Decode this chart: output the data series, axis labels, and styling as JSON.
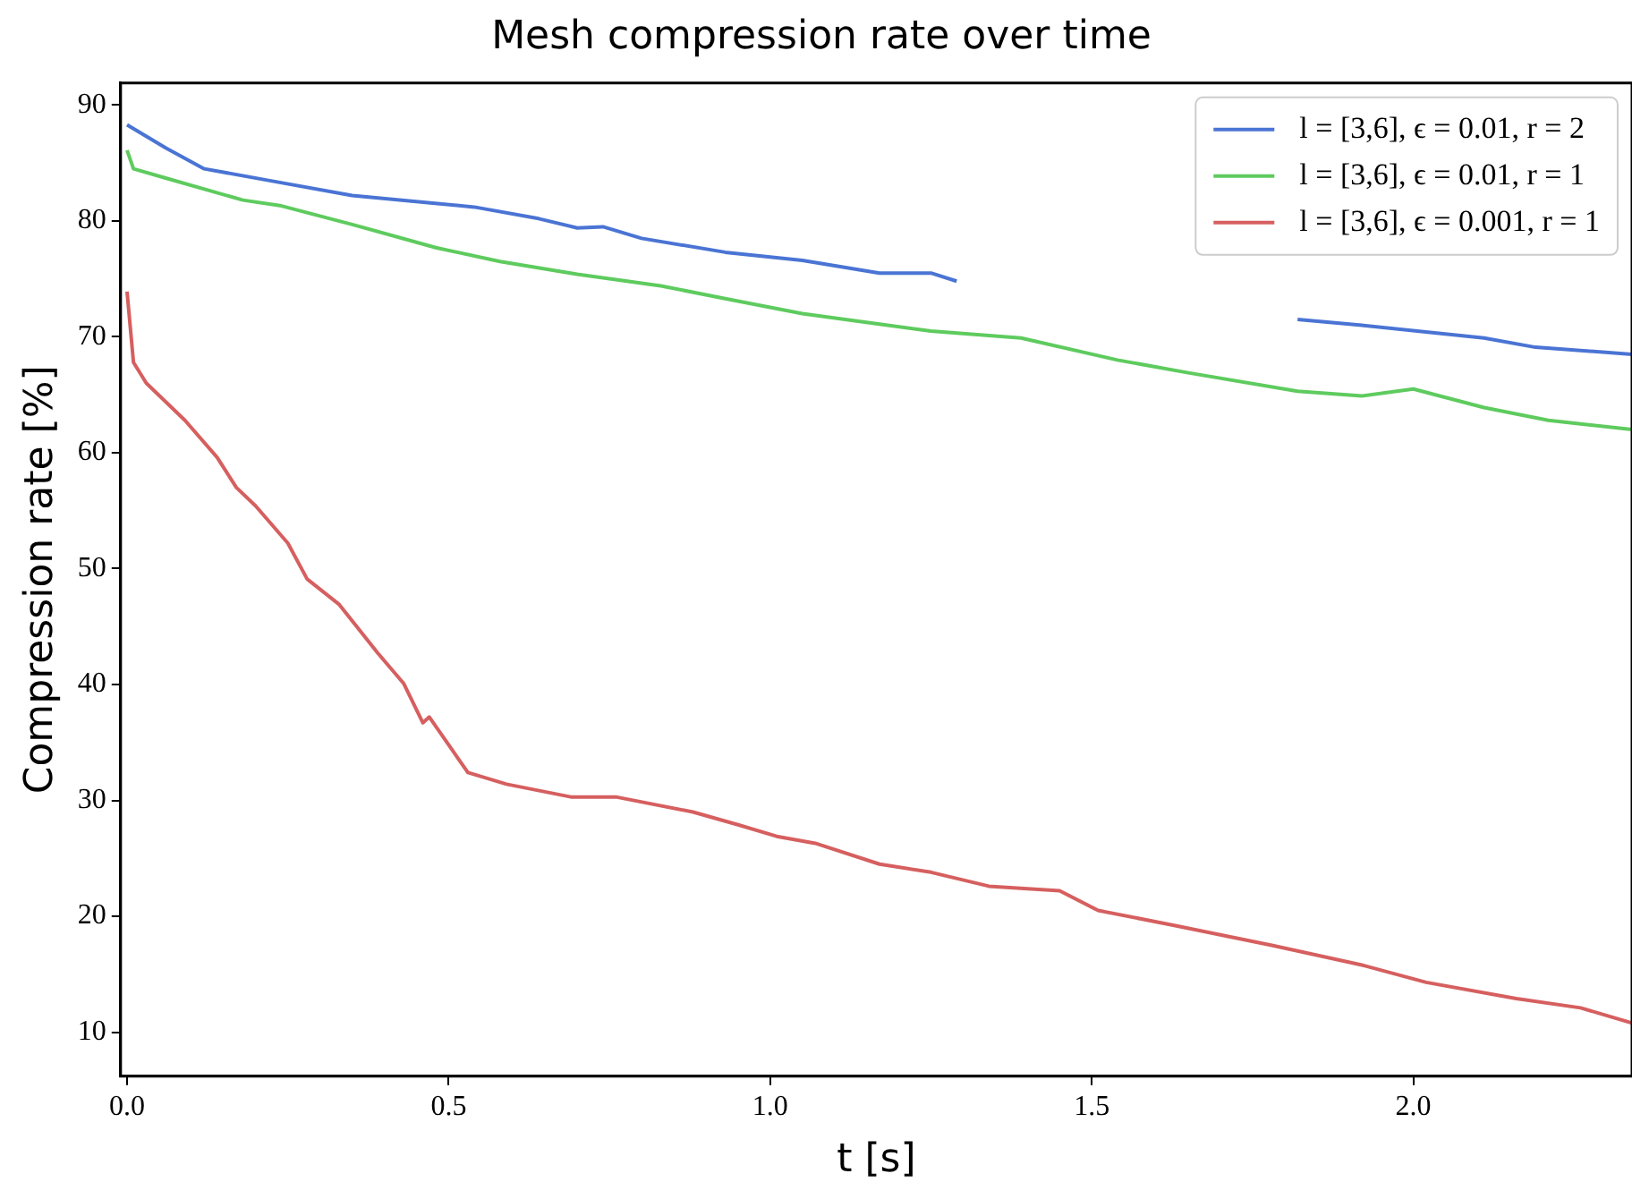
{
  "chart_data": {
    "type": "line",
    "title": "Mesh compression rate over time",
    "xlabel": "t [s]",
    "ylabel": "Compression rate [%]",
    "xlim": [
      -0.01,
      2.34
    ],
    "xticks": [
      {
        "value": 0,
        "label": "0.0"
      },
      0.5,
      {
        "value": 1,
        "label": "1.0"
      },
      1.5,
      {
        "value": 2,
        "label": "2.0"
      }
    ],
    "ylim": [
      6.2,
      91.9
    ],
    "yticks": [
      10,
      20,
      30,
      40,
      50,
      60,
      70,
      80,
      90
    ],
    "grid": false,
    "legend": "top right",
    "marker": "none",
    "line_style": "solid",
    "series": [
      {
        "name": "l = [3,6], ϵ = 0.01, r = 2",
        "color": "#4a74d4",
        "x": [
          0,
          0.06,
          0.12,
          0.22,
          0.35,
          0.54,
          0.64,
          0.7,
          0.74,
          0.8,
          0.93,
          1.05,
          1.17,
          1.25,
          1.29,
          1.54,
          1.82,
          1.92,
          2.11,
          2.19,
          2.34
        ],
        "values": [
          88.3,
          86.3,
          84.5,
          83.5,
          82.2,
          81.2,
          80.2,
          79.4,
          79.5,
          78.5,
          77.3,
          76.6,
          75.5,
          75.5,
          74.8,
          null,
          71.5,
          71.0,
          69.9,
          69.1,
          68.5
        ]
      },
      {
        "name": "l = [3,6], ϵ = 0.01, r = 1",
        "color": "#5ecb5e",
        "x": [
          0,
          0.01,
          0.06,
          0.18,
          0.24,
          0.35,
          0.48,
          0.58,
          0.7,
          0.83,
          0.93,
          1.05,
          1.17,
          1.25,
          1.39,
          1.54,
          1.65,
          1.82,
          1.92,
          2.0,
          2.11,
          2.21,
          2.34
        ],
        "values": [
          86.1,
          84.5,
          83.7,
          81.8,
          81.3,
          79.7,
          77.7,
          76.5,
          75.4,
          74.4,
          73.3,
          72.0,
          71.1,
          70.5,
          69.9,
          68.0,
          66.9,
          65.3,
          64.9,
          65.5,
          63.9,
          62.8,
          62.0
        ]
      },
      {
        "name": "l = [3,6], ϵ = 0.001, r = 1",
        "color": "#d65f5f",
        "x": [
          0,
          0.01,
          0.03,
          0.09,
          0.14,
          0.17,
          0.2,
          0.25,
          0.28,
          0.33,
          0.39,
          0.43,
          0.46,
          0.47,
          0.53,
          0.59,
          0.69,
          0.76,
          0.88,
          0.95,
          1.01,
          1.07,
          1.17,
          1.25,
          1.34,
          1.45,
          1.51,
          1.63,
          1.78,
          1.92,
          2.02,
          2.16,
          2.26,
          2.34
        ],
        "values": [
          73.9,
          67.8,
          66.0,
          62.8,
          59.6,
          57.0,
          55.4,
          52.2,
          49.1,
          46.9,
          42.7,
          40.1,
          36.7,
          37.2,
          32.4,
          31.4,
          30.3,
          30.3,
          29.0,
          27.9,
          26.9,
          26.3,
          24.5,
          23.8,
          22.6,
          22.2,
          20.5,
          19.2,
          17.5,
          15.8,
          14.3,
          12.9,
          12.1,
          10.8
        ]
      }
    ]
  }
}
